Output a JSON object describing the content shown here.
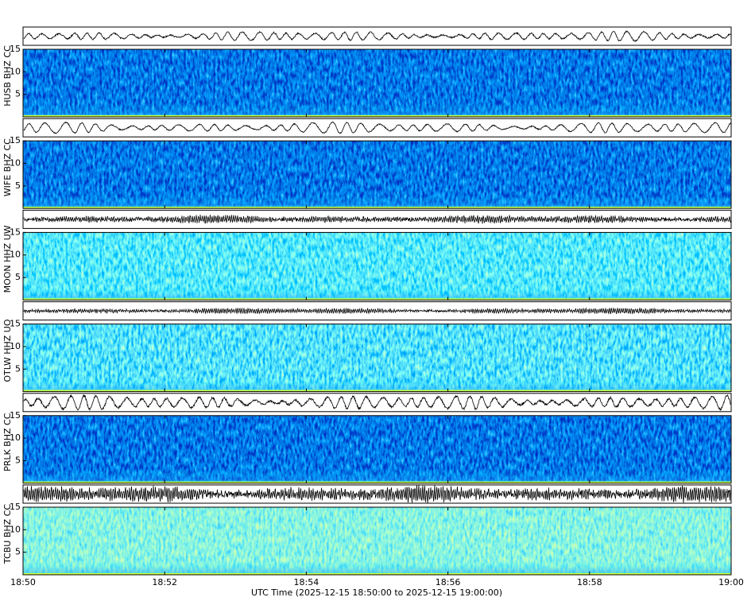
{
  "chart_data": {
    "type": "spectrogram",
    "xlabel": "UTC Time (2025-12-15 18:50:00 to 2025-12-15 19:00:00)",
    "xticks": [
      "18:50",
      "18:52",
      "18:54",
      "18:56",
      "18:58",
      "19:00"
    ],
    "panels": [
      {
        "label": "HUSB BHZ CC",
        "ylim": [
          0,
          15
        ],
        "yticks": [
          5,
          10,
          15
        ]
      },
      {
        "label": "WIFE BHZ CC",
        "ylim": [
          0,
          15
        ],
        "yticks": [
          5,
          10,
          15
        ]
      },
      {
        "label": "MOON HHZ UW",
        "ylim": [
          0,
          15
        ],
        "yticks": [
          5,
          10,
          15
        ]
      },
      {
        "label": "OTLW HHZ UO",
        "ylim": [
          0,
          15
        ],
        "yticks": [
          5,
          10,
          15
        ]
      },
      {
        "label": "PRLK BHZ CC",
        "ylim": [
          0,
          15
        ],
        "yticks": [
          5,
          10,
          15
        ]
      },
      {
        "label": "TCBU BHZ CC",
        "ylim": [
          0,
          15
        ],
        "yticks": [
          5,
          10,
          15
        ]
      }
    ]
  }
}
